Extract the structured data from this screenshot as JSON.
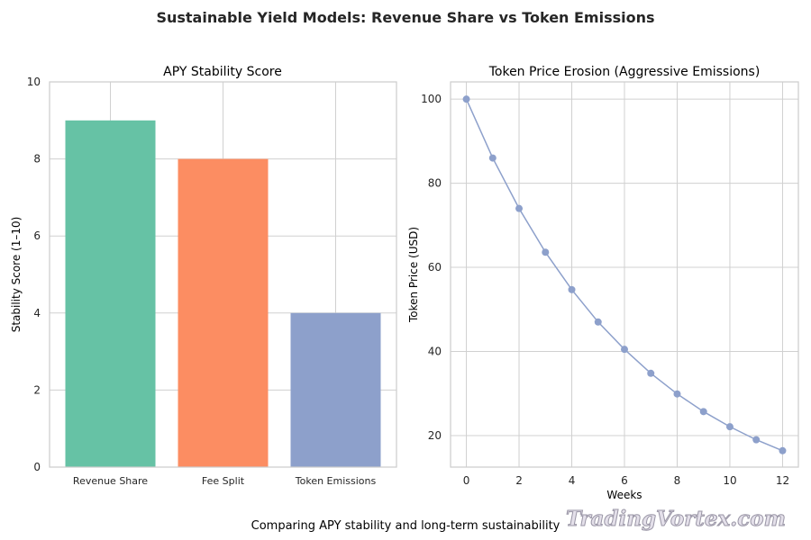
{
  "title": "Sustainable Yield Models: Revenue Share vs Token Emissions",
  "caption": "Comparing APY stability and long-term sustainability",
  "watermark": "TradingVortex.com",
  "chart_data": [
    {
      "type": "bar",
      "title": "APY Stability Score",
      "xlabel": "",
      "ylabel": "Stability Score (1–10)",
      "categories": [
        "Revenue Share",
        "Fee Split",
        "Token Emissions"
      ],
      "values": [
        9,
        8,
        4
      ],
      "colors": [
        "#66c2a5",
        "#fc8d62",
        "#8da0cb"
      ],
      "ylim": [
        0,
        10
      ],
      "yticks": [
        0,
        2,
        4,
        6,
        8,
        10
      ],
      "grid": true
    },
    {
      "type": "line",
      "title": "Token Price Erosion (Aggressive Emissions)",
      "xlabel": "Weeks",
      "ylabel": "Token Price (USD)",
      "x": [
        0,
        1,
        2,
        3,
        4,
        5,
        6,
        7,
        8,
        9,
        10,
        11,
        12
      ],
      "y": [
        100,
        86,
        74,
        63.6,
        54.7,
        47.0,
        40.5,
        34.8,
        29.9,
        25.7,
        22.1,
        19.0,
        16.4
      ],
      "color": "#8da0cb",
      "xlim": [
        -0.6,
        12.6
      ],
      "ylim": [
        12.5,
        104.1
      ],
      "xticks": [
        0,
        2,
        4,
        6,
        8,
        10,
        12
      ],
      "yticks": [
        20,
        40,
        60,
        80,
        100
      ],
      "grid": true
    }
  ]
}
